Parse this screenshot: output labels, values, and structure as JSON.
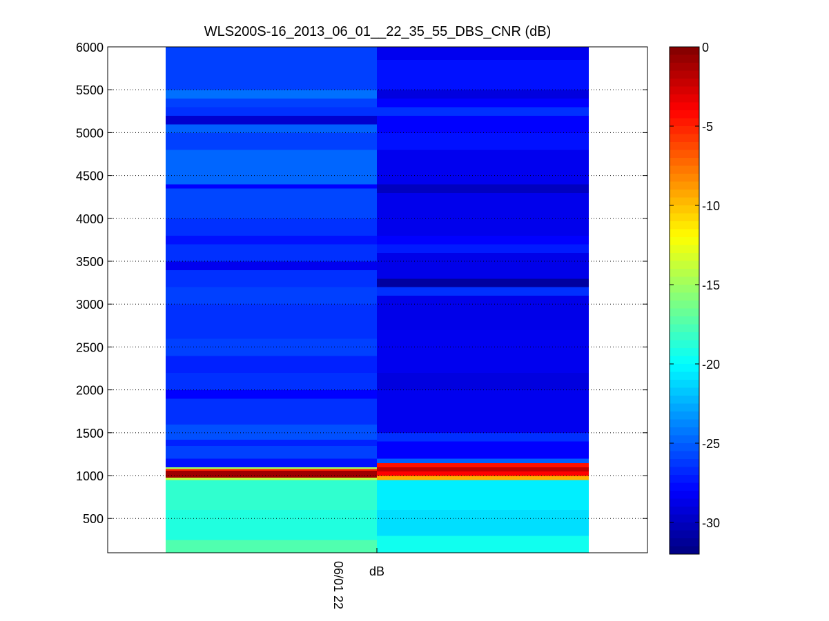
{
  "chart_data": {
    "type": "heatmap",
    "title": "WLS200S-16_2013_06_01__22_35_55_DBS_CNR (dB)",
    "xlabel": "dB",
    "ylabel": "",
    "x_tick_labels": [
      "06/01 22"
    ],
    "ylim": [
      100,
      6000
    ],
    "y_ticks": [
      500,
      1000,
      1500,
      2000,
      2500,
      3000,
      3500,
      4000,
      4500,
      5000,
      5500,
      6000
    ],
    "grid": "horizontal dotted",
    "colormap": "jet",
    "colorbar": {
      "range": [
        -32,
        0
      ],
      "ticks": [
        0,
        -5,
        -10,
        -15,
        -20,
        -25,
        -30
      ]
    },
    "columns": [
      {
        "name": "",
        "bands": [
          {
            "y0": 100,
            "y1": 250,
            "value": -17.5
          },
          {
            "y0": 250,
            "y1": 600,
            "value": -19.0
          },
          {
            "y0": 600,
            "y1": 950,
            "value": -18.5
          },
          {
            "y0": 950,
            "y1": 980,
            "value": -14.0
          },
          {
            "y0": 980,
            "y1": 1060,
            "value": -1.0
          },
          {
            "y0": 1060,
            "y1": 1080,
            "value": -5.0
          },
          {
            "y0": 1080,
            "y1": 1100,
            "value": -15.0
          },
          {
            "y0": 1100,
            "y1": 1200,
            "value": -27.5
          },
          {
            "y0": 1200,
            "y1": 1350,
            "value": -26.0
          },
          {
            "y0": 1350,
            "y1": 1420,
            "value": -27.0
          },
          {
            "y0": 1420,
            "y1": 1600,
            "value": -25.5
          },
          {
            "y0": 1600,
            "y1": 1900,
            "value": -26.5
          },
          {
            "y0": 1900,
            "y1": 2000,
            "value": -28.0
          },
          {
            "y0": 2000,
            "y1": 2200,
            "value": -26.5
          },
          {
            "y0": 2200,
            "y1": 2400,
            "value": -27.0
          },
          {
            "y0": 2400,
            "y1": 2600,
            "value": -26.0
          },
          {
            "y0": 2600,
            "y1": 3000,
            "value": -26.5
          },
          {
            "y0": 3000,
            "y1": 3200,
            "value": -26.0
          },
          {
            "y0": 3200,
            "y1": 3400,
            "value": -26.5
          },
          {
            "y0": 3400,
            "y1": 3500,
            "value": -28.5
          },
          {
            "y0": 3500,
            "y1": 3700,
            "value": -26.5
          },
          {
            "y0": 3700,
            "y1": 3800,
            "value": -27.5
          },
          {
            "y0": 3800,
            "y1": 4000,
            "value": -26.5
          },
          {
            "y0": 4000,
            "y1": 4350,
            "value": -25.8
          },
          {
            "y0": 4350,
            "y1": 4400,
            "value": -28.0
          },
          {
            "y0": 4400,
            "y1": 4800,
            "value": -24.8
          },
          {
            "y0": 4800,
            "y1": 5000,
            "value": -26.0
          },
          {
            "y0": 5000,
            "y1": 5100,
            "value": -25.0
          },
          {
            "y0": 5100,
            "y1": 5200,
            "value": -29.5
          },
          {
            "y0": 5200,
            "y1": 5300,
            "value": -26.5
          },
          {
            "y0": 5300,
            "y1": 5400,
            "value": -26.0
          },
          {
            "y0": 5400,
            "y1": 5500,
            "value": -24.5
          },
          {
            "y0": 5500,
            "y1": 6000,
            "value": -26.0
          }
        ]
      },
      {
        "name": "",
        "bands": [
          {
            "y0": 100,
            "y1": 300,
            "value": -19.5
          },
          {
            "y0": 300,
            "y1": 600,
            "value": -21.0
          },
          {
            "y0": 600,
            "y1": 950,
            "value": -20.5
          },
          {
            "y0": 950,
            "y1": 1000,
            "value": -9.5
          },
          {
            "y0": 1000,
            "y1": 1050,
            "value": -4.0
          },
          {
            "y0": 1050,
            "y1": 1100,
            "value": -2.0
          },
          {
            "y0": 1100,
            "y1": 1150,
            "value": -4.5
          },
          {
            "y0": 1150,
            "y1": 1200,
            "value": -25.0
          },
          {
            "y0": 1200,
            "y1": 1400,
            "value": -28.0
          },
          {
            "y0": 1400,
            "y1": 1500,
            "value": -26.5
          },
          {
            "y0": 1500,
            "y1": 2000,
            "value": -28.5
          },
          {
            "y0": 2000,
            "y1": 2200,
            "value": -29.0
          },
          {
            "y0": 2200,
            "y1": 2700,
            "value": -28.5
          },
          {
            "y0": 2700,
            "y1": 3100,
            "value": -28.7
          },
          {
            "y0": 3100,
            "y1": 3200,
            "value": -26.5
          },
          {
            "y0": 3200,
            "y1": 3300,
            "value": -31.0
          },
          {
            "y0": 3300,
            "y1": 3600,
            "value": -28.7
          },
          {
            "y0": 3600,
            "y1": 3700,
            "value": -27.2
          },
          {
            "y0": 3700,
            "y1": 3800,
            "value": -28.0
          },
          {
            "y0": 3800,
            "y1": 4300,
            "value": -28.6
          },
          {
            "y0": 4300,
            "y1": 4400,
            "value": -30.0
          },
          {
            "y0": 4400,
            "y1": 4800,
            "value": -28.5
          },
          {
            "y0": 4800,
            "y1": 5000,
            "value": -27.5
          },
          {
            "y0": 5000,
            "y1": 5200,
            "value": -28.0
          },
          {
            "y0": 5200,
            "y1": 5300,
            "value": -26.5
          },
          {
            "y0": 5300,
            "y1": 5400,
            "value": -28.0
          },
          {
            "y0": 5400,
            "y1": 5500,
            "value": -29.0
          },
          {
            "y0": 5500,
            "y1": 5850,
            "value": -27.5
          },
          {
            "y0": 5850,
            "y1": 6000,
            "value": -28.5
          }
        ]
      }
    ]
  }
}
